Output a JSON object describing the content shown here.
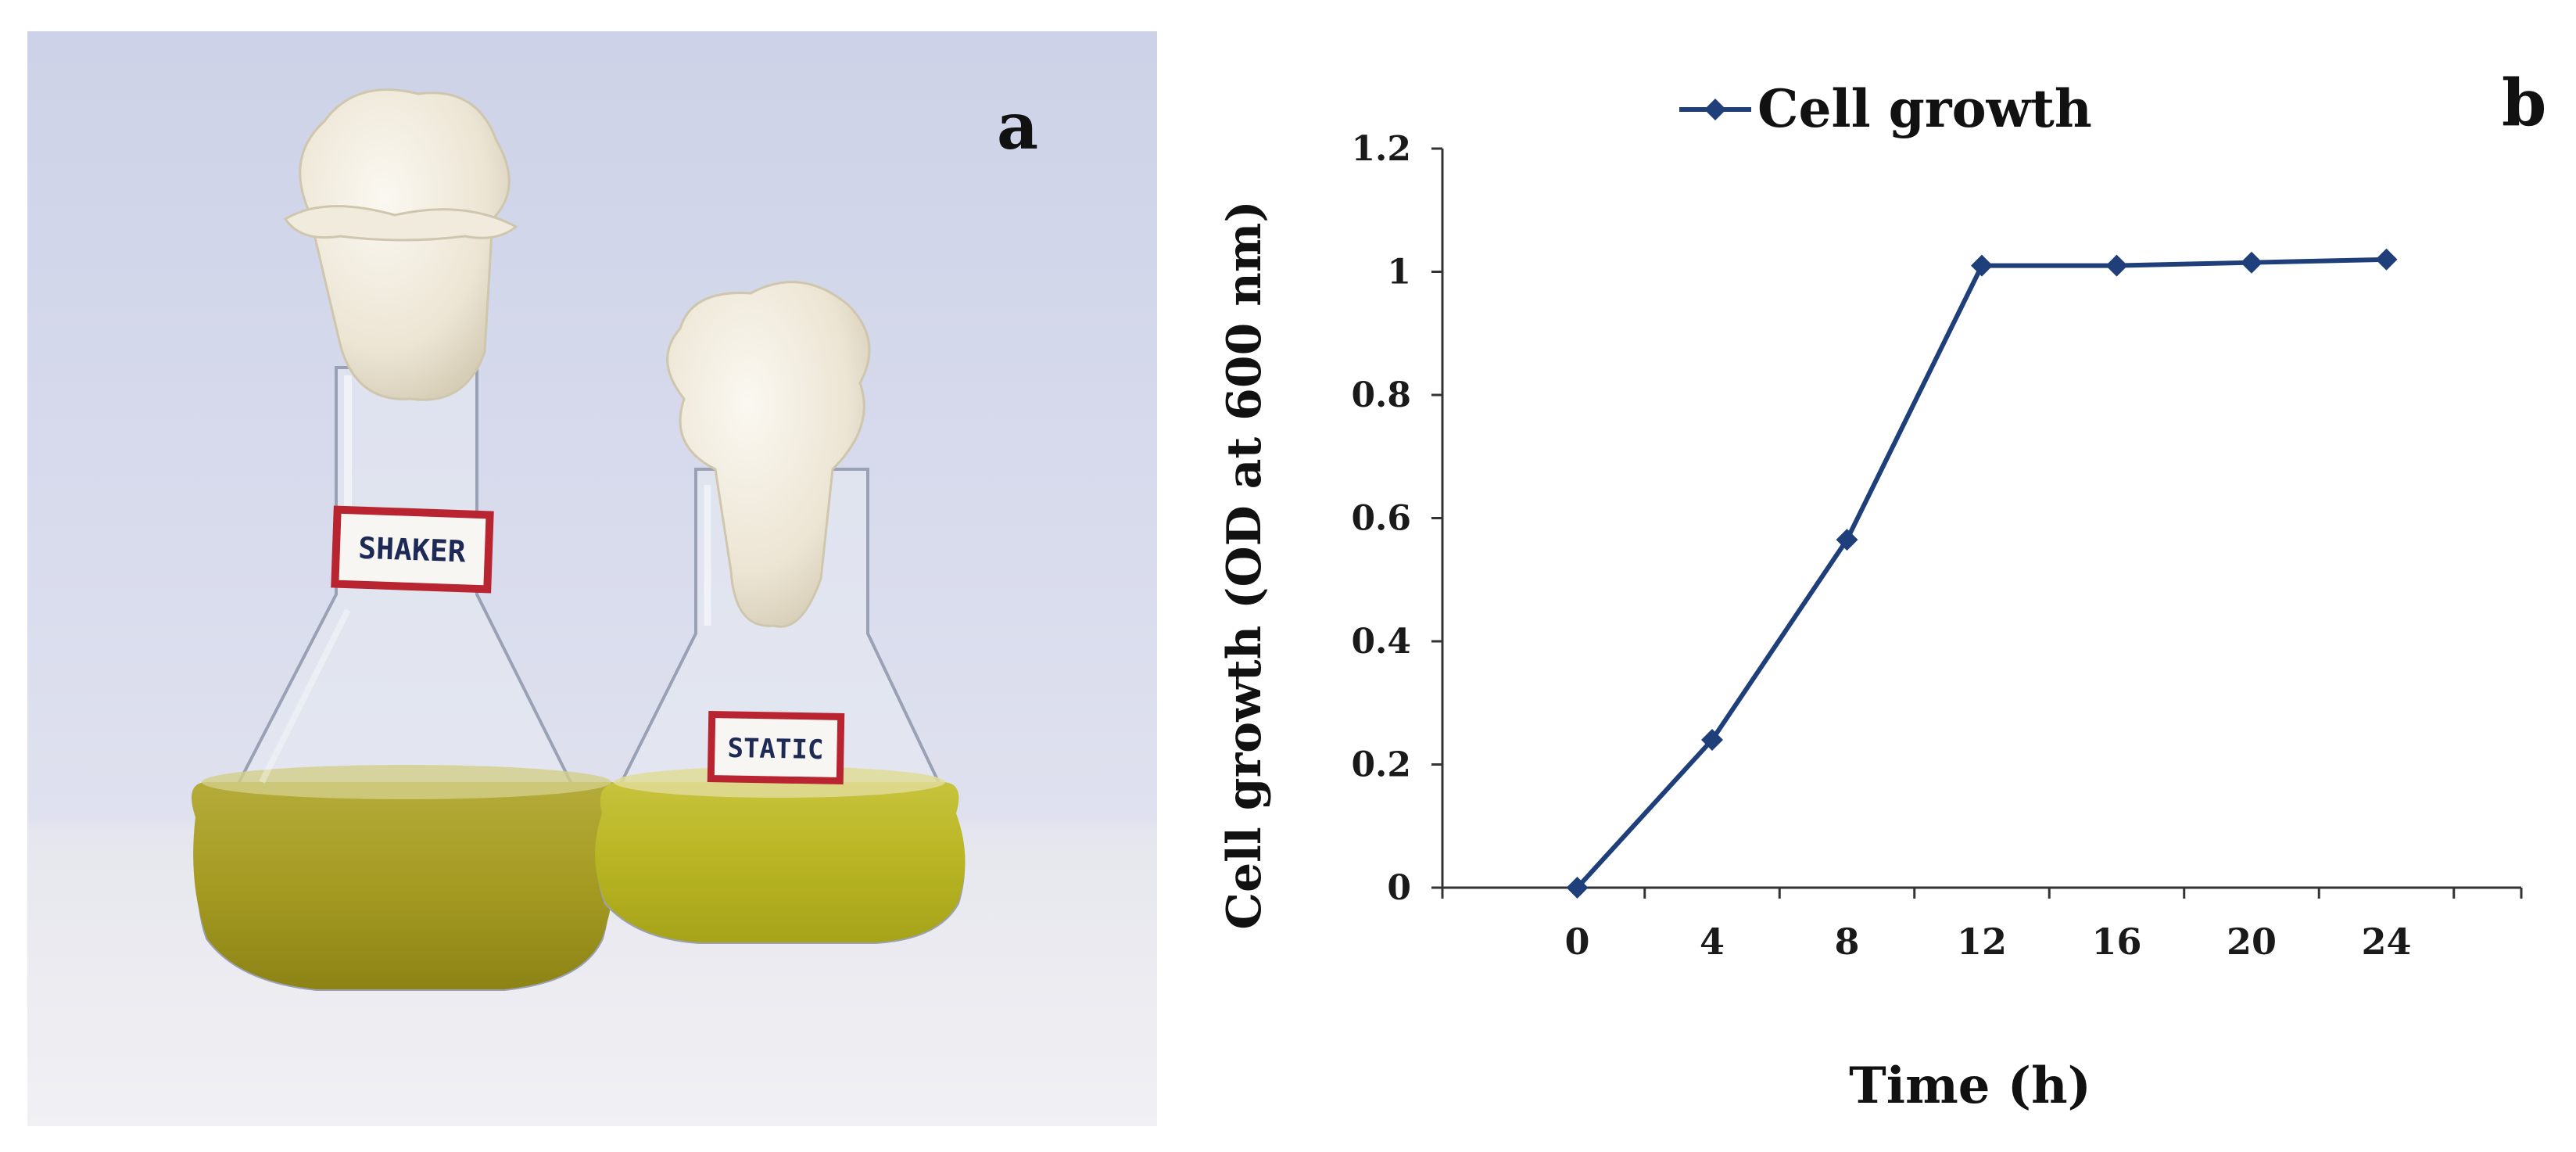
{
  "panels": {
    "photo_letter": "a",
    "chart_letter": "b"
  },
  "photo": {
    "left_flask_label": "SHAKER",
    "right_flask_label": "STATIC",
    "colors": {
      "background": "#dfe2ee",
      "liquid": "#a9a32a",
      "cotton": "#efe9dc",
      "label_border": "#b8242f"
    }
  },
  "chart_data": {
    "type": "line",
    "x": [
      0,
      4,
      8,
      12,
      16,
      20,
      24
    ],
    "series": [
      {
        "name": "Cell growth",
        "values": [
          0,
          0.24,
          0.565,
          1.01,
          1.01,
          1.015,
          1.02
        ],
        "color": "#1f3f7a",
        "marker": "diamond"
      }
    ],
    "xlabel": "Time (h)",
    "ylabel": "Cell growth (OD at 600 nm)",
    "x_tick_labels": [
      "0",
      "4",
      "8",
      "12",
      "16",
      "20",
      "24"
    ],
    "y_tick_labels": [
      "0",
      "0.2",
      "0.4",
      "0.6",
      "0.8",
      "1",
      "1.2"
    ],
    "y_ticks": [
      0,
      0.2,
      0.4,
      0.6,
      0.8,
      1,
      1.2
    ],
    "ylim": [
      0,
      1.2
    ],
    "grid": false,
    "legend_position": "top"
  }
}
